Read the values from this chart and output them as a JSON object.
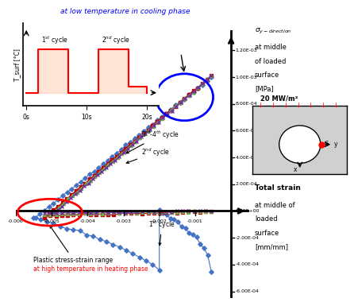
{
  "xlim": [
    -0.006,
    0.0005
  ],
  "ylim": [
    -0.00065,
    0.00135
  ],
  "ytick_vals": [
    -0.0006,
    -0.0004,
    -0.0002,
    0,
    0.0002,
    0.0004,
    0.0006,
    0.0008,
    0.001,
    0.0012
  ],
  "ytick_labels": [
    "-6.00E-04",
    "-4.00E-04",
    "-2.00E-04",
    "0.00E+00",
    "2.00E-04",
    "4.00E-04",
    "6.00E-04",
    "8.00E-04",
    "1.00E-03",
    "1.20E-03"
  ],
  "xtick_vals": [
    -0.006,
    -0.005,
    -0.004,
    -0.003,
    -0.002,
    -0.001
  ],
  "xtick_labels": [
    "-0.006",
    "-0.005",
    "-0.004",
    "-0.003",
    "-0.002",
    "-0.001"
  ],
  "title": "at low temperature in cooling phase",
  "plastic_label": "Plastic stress-strain range",
  "high_temp_label": "at high temperature in heating phase",
  "c1_color": "#4472C4",
  "c2_color": "#C00000",
  "c3_color": "#70AD47",
  "c4_color": "#7030A0",
  "grid_color": "#d0d0d0",
  "bg_color": "#ffffff"
}
